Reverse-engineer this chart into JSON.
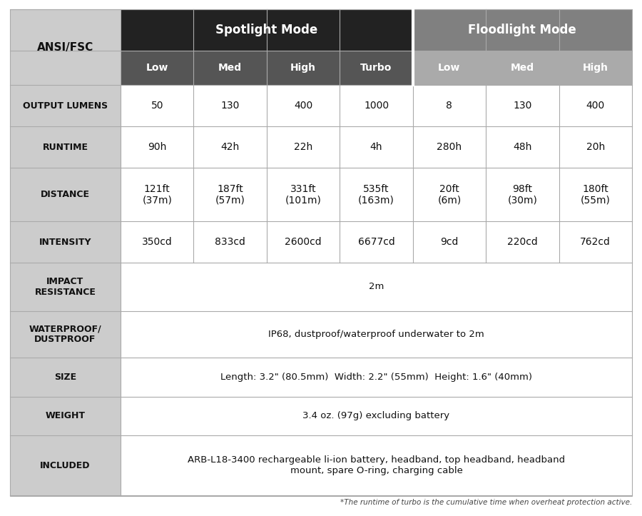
{
  "bg_color": "#ffffff",
  "spotlight_header_bg": "#222222",
  "spotlight_header_text": "#ffffff",
  "floodlight_header_bg": "#808080",
  "floodlight_header_text": "#ffffff",
  "subheader_spotlight_bg": "#555555",
  "subheader_floodlight_bg": "#aaaaaa",
  "subheader_text": "#ffffff",
  "row_label_bg": "#cccccc",
  "row_label_text": "#111111",
  "cell_bg": "#ffffff",
  "grid_color": "#aaaaaa",
  "ansi_label": "ANSI/FSC",
  "spotlight_title": "Spotlight Mode",
  "floodlight_title": "Floodlight Mode",
  "col_labels": [
    "Low",
    "Med",
    "High",
    "Turbo",
    "Low",
    "Med",
    "High"
  ],
  "spotlight_cols": 4,
  "floodlight_cols": 3,
  "rows": [
    {
      "label": "OUTPUT LUMENS",
      "values": [
        "50",
        "130",
        "400",
        "1000",
        "8",
        "130",
        "400"
      ],
      "span": false,
      "label_multiline": false
    },
    {
      "label": "RUNTIME",
      "values": [
        "90h",
        "42h",
        "22h",
        "4h",
        "280h",
        "48h",
        "20h"
      ],
      "span": false,
      "label_multiline": false
    },
    {
      "label": "DISTANCE",
      "values": [
        "121ft\n(37m)",
        "187ft\n(57m)",
        "331ft\n(101m)",
        "535ft\n(163m)",
        "20ft\n(6m)",
        "98ft\n(30m)",
        "180ft\n(55m)"
      ],
      "span": false,
      "label_multiline": false
    },
    {
      "label": "INTENSITY",
      "values": [
        "350cd",
        "833cd",
        "2600cd",
        "6677cd",
        "9cd",
        "220cd",
        "762cd"
      ],
      "span": false,
      "label_multiline": false
    },
    {
      "label": "IMPACT\nRESISTANCE",
      "values": [
        "2m"
      ],
      "span": true,
      "label_multiline": true
    },
    {
      "label": "WATERPROOF/\nDUSTPROOF",
      "values": [
        "IP68, dustproof/waterproof underwater to 2m"
      ],
      "span": true,
      "label_multiline": true
    },
    {
      "label": "SIZE",
      "values": [
        "Length: 3.2\" (80.5mm)  Width: 2.2\" (55mm)  Height: 1.6\" (40mm)"
      ],
      "span": true,
      "label_multiline": false
    },
    {
      "label": "WEIGHT",
      "values": [
        "3.4 oz. (97g) excluding battery"
      ],
      "span": true,
      "label_multiline": false
    },
    {
      "label": "INCLUDED",
      "values": [
        "ARB-L18-3400 rechargeable li-ion battery, headband, top headband, headband\nmount, spare O-ring, charging cable"
      ],
      "span": true,
      "label_multiline": false
    }
  ],
  "footnote": "*The runtime of turbo is the cumulative time when overheat protection active."
}
